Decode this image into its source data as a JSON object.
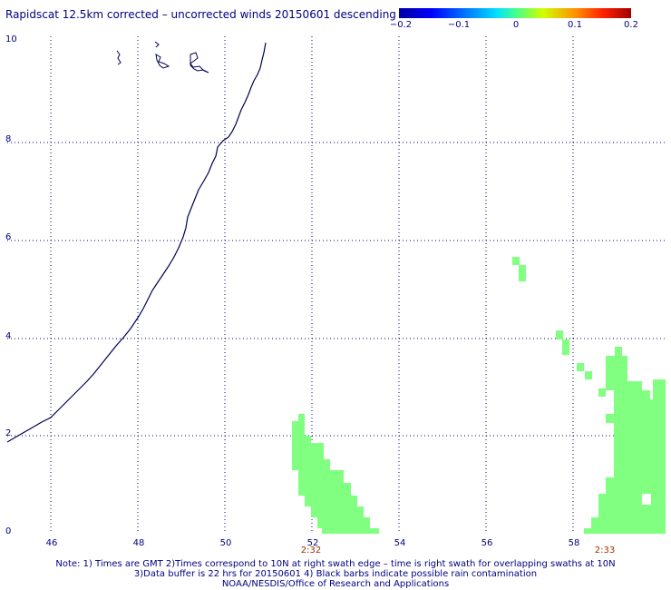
{
  "title": "Rapidscat 12.5km corrected – uncorrected winds 20150601 descending",
  "colorbar": {
    "tick_labels": [
      "−0.2",
      "−0.1",
      "0",
      "0.1",
      "0.2"
    ]
  },
  "axes": {
    "x_ticks": [
      "46",
      "48",
      "50",
      "52",
      "54",
      "56",
      "58"
    ],
    "y_ticks": [
      "0",
      "2",
      "4",
      "6",
      "8",
      "10"
    ]
  },
  "swath_times": [
    "2:32",
    "2:33"
  ],
  "notes": [
    "Note: 1) Times are GMT 2)Times correspond to 10N at right swath edge – time is right swath for overlapping swaths at 10N",
    "3)Data buffer is 22 hrs for 20150601 4) Black barbs indicate possible rain contamination",
    "NOAA/NESDIS/Office of Research and Applications"
  ],
  "colors": {
    "text": "#000080",
    "coastline": "#000050",
    "grid": "#000080",
    "wind_diff_cells": "#80ff80",
    "time_label": "#a03000"
  }
}
